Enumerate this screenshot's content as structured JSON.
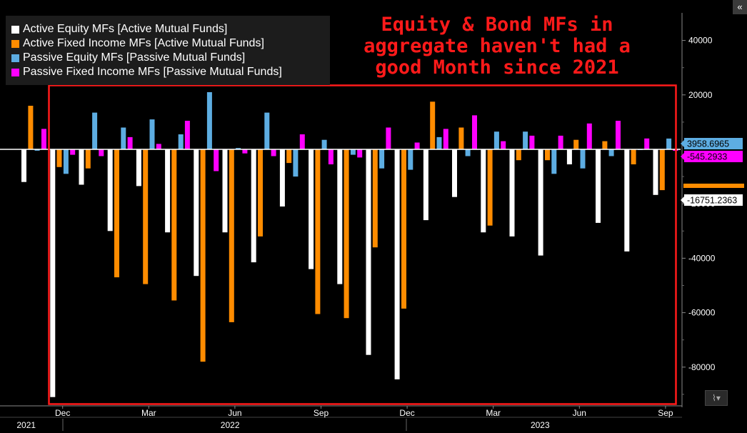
{
  "chart_data": {
    "type": "bar",
    "title": "Equity & Bond MFs in aggregate haven't had a good Month since 2021",
    "title_lines": [
      "Equity & Bond MFs in",
      "aggregate haven't had a",
      "good Month since 2021"
    ],
    "categories": [
      "2021-11",
      "2021-12",
      "2022-01",
      "2022-02",
      "2022-03",
      "2022-04",
      "2022-05",
      "2022-06",
      "2022-07",
      "2022-08",
      "2022-09",
      "2022-10",
      "2022-11",
      "2022-12",
      "2023-01",
      "2023-02",
      "2023-03",
      "2023-04",
      "2023-05",
      "2023-06",
      "2023-07",
      "2023-08",
      "2023-09"
    ],
    "series": [
      {
        "name": "Active Equity MFs [Active Mutual Funds]",
        "color": "#ffffff",
        "values": [
          -12000,
          -91000,
          -13000,
          -30000,
          -13500,
          -30500,
          -46500,
          -30500,
          -41500,
          -21000,
          -44000,
          -49500,
          -75500,
          -84500,
          -26000,
          -17500,
          -30500,
          -32000,
          -39000,
          -5500,
          -27000,
          -37500,
          -16751.2363
        ]
      },
      {
        "name": "Active Fixed Income MFs [Active Mutual Funds]",
        "color": "#ff8c00",
        "values": [
          16000,
          -6500,
          -7000,
          -47000,
          -49500,
          -55500,
          -78000,
          -63500,
          -32000,
          -5000,
          -60500,
          -62000,
          -36000,
          -58500,
          17500,
          8000,
          -28000,
          -4000,
          -4000,
          3500,
          3000,
          -5500,
          -15000
        ]
      },
      {
        "name": "Passive Equity MFs [Passive Mutual Funds]",
        "color": "#5dade2",
        "values": [
          -500,
          -9000,
          13500,
          8000,
          11000,
          5500,
          21000,
          500,
          13500,
          -10000,
          3500,
          -2000,
          -7000,
          -7500,
          4500,
          -2500,
          6500,
          6500,
          -9000,
          -7000,
          -2500,
          0,
          3958.6965
        ]
      },
      {
        "name": "Passive Fixed Income MFs [Passive Mutual Funds]",
        "color": "#ff00ff",
        "values": [
          7500,
          -2000,
          -2500,
          4500,
          2000,
          10500,
          -8000,
          -1500,
          -2500,
          5500,
          -5500,
          -3000,
          8000,
          2500,
          7500,
          12500,
          3000,
          5000,
          5000,
          9500,
          10500,
          4000,
          -545.2933
        ]
      }
    ],
    "xlabel": "",
    "ylabel": "",
    "ylim": [
      -93000,
      49000
    ],
    "yticks": [
      40000,
      20000,
      -20000,
      -40000,
      -60000,
      -80000
    ],
    "ytick_labels": [
      "40000",
      "20000",
      "-20000",
      "-40000",
      "-60000",
      "-80000"
    ],
    "xticks": [
      {
        "label": "Dec",
        "index": 1
      },
      {
        "label": "Mar",
        "index": 4
      },
      {
        "label": "Jun",
        "index": 7
      },
      {
        "label": "Sep",
        "index": 10
      },
      {
        "label": "Dec",
        "index": 13
      },
      {
        "label": "Mar",
        "index": 16
      },
      {
        "label": "Jun",
        "index": 19
      },
      {
        "label": "Sep",
        "index": 22
      }
    ],
    "year_labels": [
      {
        "label": "2021",
        "index": -0.6
      },
      {
        "label": "2022",
        "index": 6.5
      },
      {
        "label": "2023",
        "index": 17.3
      }
    ],
    "last_value_tags": [
      {
        "label": "3958.6965",
        "value": 3958.6965,
        "bg": "#5dade2",
        "fg": "#000000"
      },
      {
        "label": "-545.2933",
        "value": -545.2933,
        "bg": "#ff00ff",
        "fg": "#000000"
      },
      {
        "label": "-16751.2363",
        "value": -16751.2363,
        "bg": "#ffffff",
        "fg": "#000000"
      }
    ],
    "highlight_box_color": "#ff1a1a"
  },
  "ui": {
    "collapse_label": "«",
    "chart_type_label": "⌇▾"
  }
}
